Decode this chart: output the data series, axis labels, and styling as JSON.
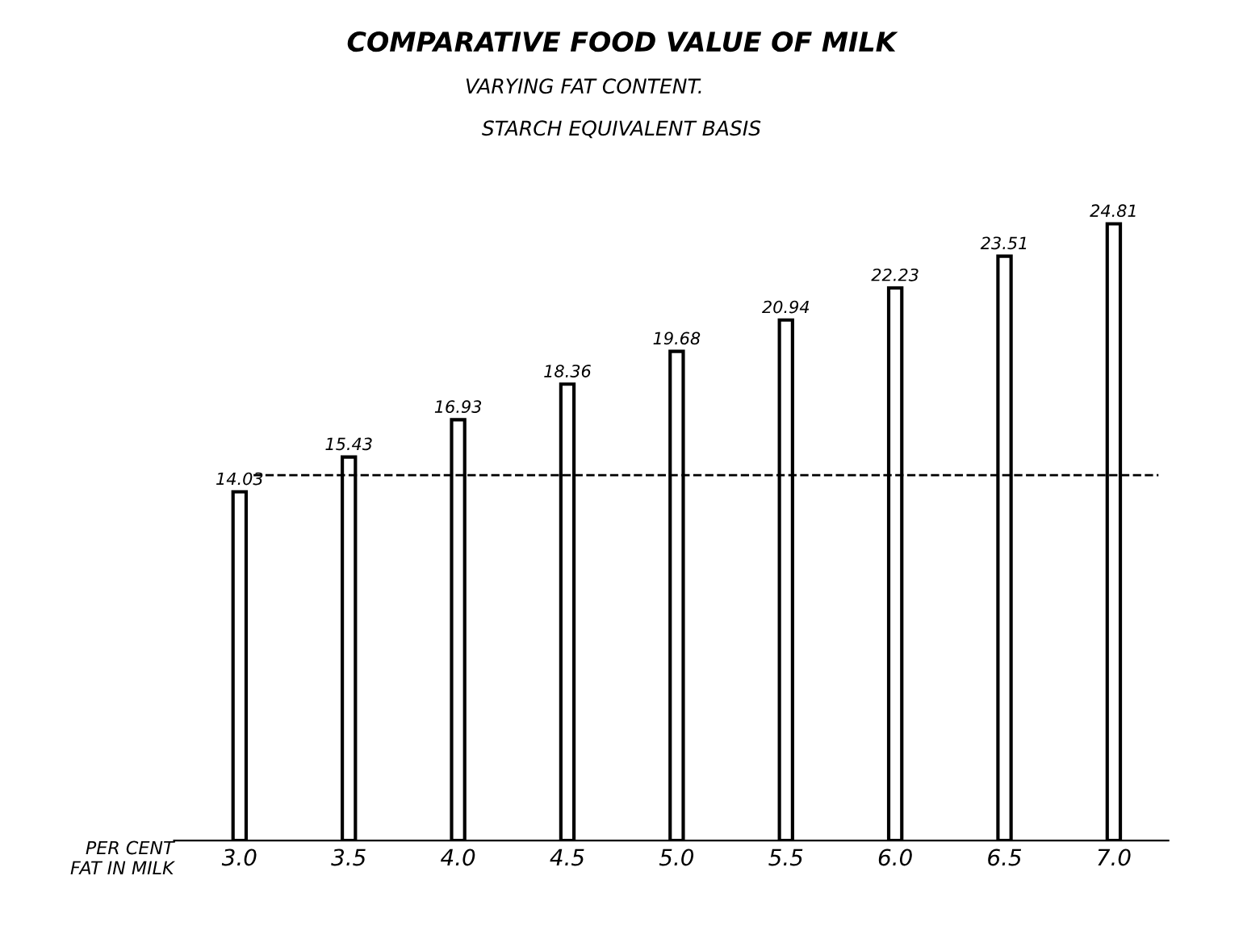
{
  "chart_data": {
    "type": "bar",
    "title": "COMPARATIVE FOOD VALUE OF MILK",
    "subtitle": "VARYING FAT CONTENT.",
    "annotations": [
      "STARCH EQUIVALENT BASIS"
    ],
    "xlabel": "PER CENT\nFAT IN MILK",
    "categories": [
      "3.0",
      "3.5",
      "4.0",
      "4.5",
      "5.0",
      "5.5",
      "6.0",
      "6.5",
      "7.0"
    ],
    "values": [
      14.03,
      15.43,
      16.93,
      18.36,
      19.68,
      20.94,
      22.23,
      23.51,
      24.81
    ],
    "color": "#ffffff",
    "data_labels": true,
    "ref_lines": [
      {
        "axis": "y",
        "value": 14.7,
        "color": "#000000",
        "line_style": "dashed"
      }
    ],
    "grid": false,
    "legend": false
  }
}
